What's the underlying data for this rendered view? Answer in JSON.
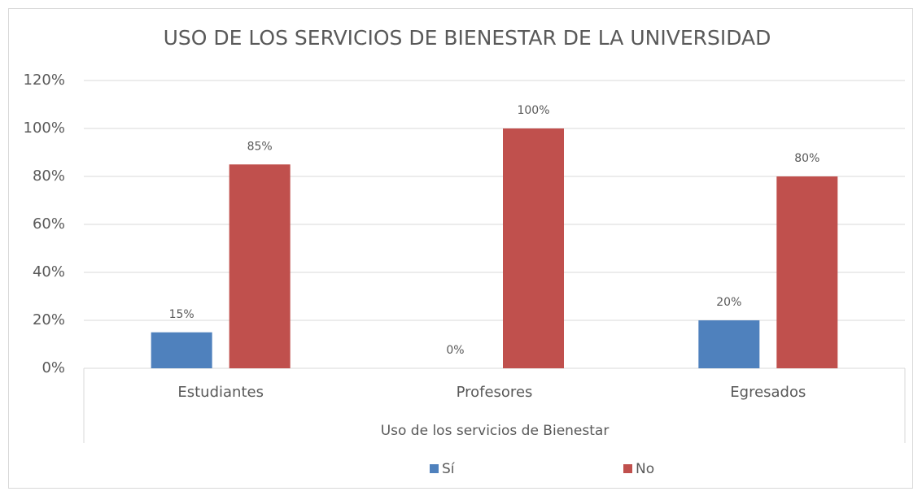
{
  "chart_data": {
    "type": "bar",
    "title": "USO DE LOS SERVICIOS DE BIENESTAR DE LA UNIVERSIDAD",
    "x_label": "Uso de los servicios de Bienestar",
    "categories": [
      "Estudiantes",
      "Profesores",
      "Egresados"
    ],
    "series": [
      {
        "name": "Sí",
        "color": "#4f81bd",
        "values": [
          15,
          0,
          20
        ],
        "value_labels": [
          "15%",
          "0%",
          "20%"
        ]
      },
      {
        "name": "No",
        "color": "#c0504d",
        "values": [
          85,
          100,
          80
        ],
        "value_labels": [
          "85%",
          "100%",
          "80%"
        ]
      }
    ],
    "ylim": [
      0,
      120
    ],
    "yticks": [
      {
        "value": 0,
        "label": "0%"
      },
      {
        "value": 20,
        "label": "20%"
      },
      {
        "value": 40,
        "label": "40%"
      },
      {
        "value": 60,
        "label": "60%"
      },
      {
        "value": 80,
        "label": "80%"
      },
      {
        "value": 100,
        "label": "100%"
      },
      {
        "value": 120,
        "label": "120%"
      }
    ],
    "grid": true,
    "legend": "bottom"
  }
}
